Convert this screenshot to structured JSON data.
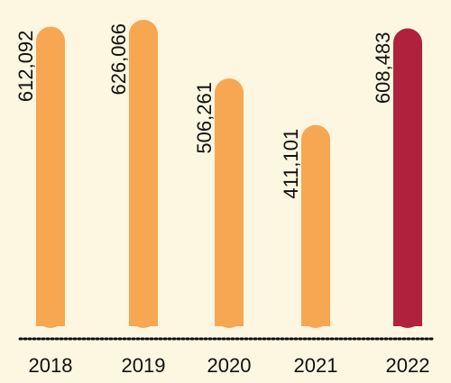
{
  "chart_data": {
    "type": "bar",
    "categories": [
      "2018",
      "2019",
      "2020",
      "2021",
      "2022"
    ],
    "values": [
      612092,
      626066,
      506261,
      411101,
      608483
    ],
    "value_labels": [
      "612,092",
      "626,066",
      "506,261",
      "411,101",
      "608,483"
    ],
    "colors": [
      "#f7a652",
      "#f7a652",
      "#f7a652",
      "#f7a652",
      "#b0213e"
    ],
    "title": "",
    "xlabel": "",
    "ylabel": "",
    "ylim": [
      0,
      626066
    ],
    "grid": false,
    "legend": "none",
    "baseline_style": "dotted",
    "background": "#fdf6e0"
  }
}
